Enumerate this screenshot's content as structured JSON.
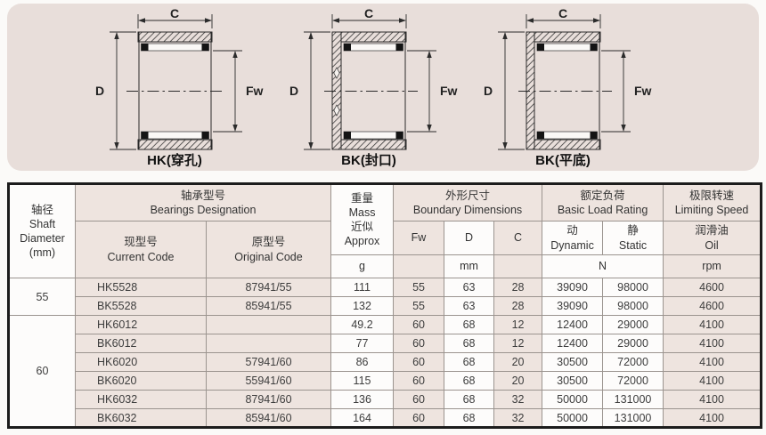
{
  "diagrams": [
    {
      "label": "HK(穿孔)",
      "dim_c": "C",
      "dim_d": "D",
      "dim_fw": "Fw"
    },
    {
      "label": "BK(封口)",
      "dim_c": "C",
      "dim_d": "D",
      "dim_fw": "Fw"
    },
    {
      "label": "BK(平底)",
      "dim_c": "C",
      "dim_d": "D",
      "dim_fw": "Fw"
    }
  ],
  "table": {
    "header": {
      "shaft": {
        "zh": "轴径",
        "en1": "Shaft",
        "en2": "Diameter",
        "en3": "(mm)"
      },
      "designation": {
        "zh": "轴承型号",
        "en": "Bearings Designation"
      },
      "current": {
        "zh": "现型号",
        "en": "Current Code"
      },
      "original": {
        "zh": "原型号",
        "en": "Original Code"
      },
      "mass": {
        "zh": "重量",
        "en": "Mass",
        "zh2": "近似",
        "en2": "Approx",
        "unit": "g"
      },
      "boundary": {
        "zh": "外形尺寸",
        "en": "Boundary Dimensions",
        "fw": "Fw",
        "d": "D",
        "c": "C",
        "unit": "mm"
      },
      "load": {
        "zh": "额定负荷",
        "en": "Basic Load Rating",
        "dyn_zh": "动",
        "dyn_en": "Dynamic",
        "stat_zh": "静",
        "stat_en": "Static",
        "unit": "N"
      },
      "speed": {
        "zh": "极限转速",
        "en": "Limiting Speed",
        "oil_zh": "润滑油",
        "oil_en": "Oil",
        "unit": "rpm"
      }
    },
    "groups": [
      {
        "shaft": "55",
        "rows": [
          [
            "HK5528",
            "87941/55",
            "111",
            "55",
            "63",
            "28",
            "39090",
            "98000",
            "4600"
          ],
          [
            "BK5528",
            "85941/55",
            "132",
            "55",
            "63",
            "28",
            "39090",
            "98000",
            "4600"
          ]
        ]
      },
      {
        "shaft": "60",
        "rows": [
          [
            "HK6012",
            "",
            "49.2",
            "60",
            "68",
            "12",
            "12400",
            "29000",
            "4100"
          ],
          [
            "BK6012",
            "",
            "77",
            "60",
            "68",
            "12",
            "12400",
            "29000",
            "4100"
          ],
          [
            "HK6020",
            "57941/60",
            "86",
            "60",
            "68",
            "20",
            "30500",
            "72000",
            "4100"
          ],
          [
            "BK6020",
            "55941/60",
            "115",
            "60",
            "68",
            "20",
            "30500",
            "72000",
            "4100"
          ],
          [
            "HK6032",
            "87941/60",
            "136",
            "60",
            "68",
            "32",
            "50000",
            "131000",
            "4100"
          ],
          [
            "BK6032",
            "85941/60",
            "164",
            "60",
            "68",
            "32",
            "50000",
            "131000",
            "4100"
          ]
        ]
      }
    ]
  },
  "colors": {
    "panel_bg": "#e8deda",
    "cell_pink": "#eee4df",
    "cell_white": "#fdfcfb",
    "grid_line": "#9b948f",
    "outer_border": "#1c1c1c"
  }
}
